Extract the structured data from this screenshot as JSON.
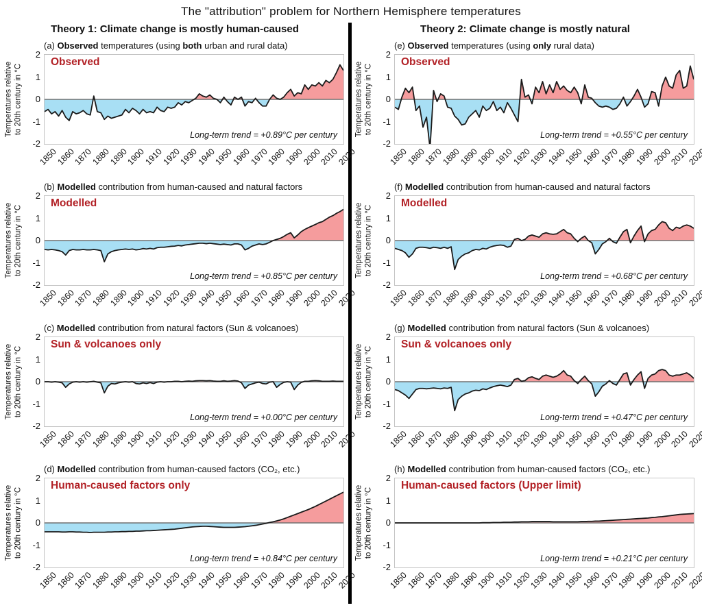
{
  "title": "The \"attribution\" problem for Northern Hemisphere temperatures",
  "columns": [
    {
      "header": "Theory 1: Climate change is mostly human-caused"
    },
    {
      "header": "Theory 2: Climate change is mostly natural"
    }
  ],
  "axis": {
    "x_ticks": [
      "1850",
      "1860",
      "1870",
      "1880",
      "1890",
      "1900",
      "1910",
      "1920",
      "1930",
      "1940",
      "1950",
      "1960",
      "1970",
      "1980",
      "1990",
      "2000",
      "2010",
      "2020"
    ],
    "y_ticks": [
      "2",
      "1",
      "0",
      "-1",
      "-2"
    ],
    "y_label_line1": "Temperatures relative",
    "y_label_line2": "to 20th century in °C",
    "x_min": 1850,
    "x_max": 2020,
    "y_min": -2,
    "y_max": 2,
    "grid": false
  },
  "colors": {
    "positive_fill": "#F59C9D",
    "negative_fill": "#A8DFF4",
    "line": "#1A1A1A",
    "zero_line": "#707070",
    "plot_border": "#C4C4C4",
    "series_label": "#B22126",
    "divider": "#000000"
  },
  "chart_data": [
    {
      "id": "a",
      "type": "area",
      "column": 0,
      "caption_parts": [
        {
          "text": "(a) ",
          "bold": false
        },
        {
          "text": "Observed",
          "bold": true
        },
        {
          "text": " temperatures (using ",
          "bold": false
        },
        {
          "text": "both",
          "bold": true
        },
        {
          "text": " urban and rural data)",
          "bold": false
        }
      ],
      "label": "Observed",
      "trend_text": "Long-term trend = +0.89°C per century",
      "x_start": 1850,
      "x_step": 2,
      "values": [
        -0.55,
        -0.45,
        -0.65,
        -0.55,
        -0.75,
        -0.5,
        -0.8,
        -0.95,
        -0.55,
        -0.65,
        -0.6,
        -0.5,
        -0.65,
        -0.7,
        0.15,
        -0.55,
        -0.6,
        -0.9,
        -0.75,
        -0.85,
        -0.8,
        -0.75,
        -0.7,
        -0.45,
        -0.6,
        -0.4,
        -0.5,
        -0.65,
        -0.45,
        -0.6,
        -0.55,
        -0.6,
        -0.35,
        -0.5,
        -0.55,
        -0.35,
        -0.4,
        -0.35,
        -0.15,
        -0.25,
        -0.1,
        -0.15,
        -0.05,
        0.05,
        0.25,
        0.15,
        0.1,
        0.2,
        0.05,
        0.0,
        -0.15,
        0.1,
        -0.1,
        -0.25,
        0.1,
        0.0,
        0.1,
        -0.3,
        -0.1,
        -0.15,
        0.05,
        -0.15,
        -0.3,
        -0.3,
        0.0,
        0.2,
        0.05,
        0.0,
        0.1,
        0.3,
        0.45,
        0.15,
        0.3,
        0.25,
        0.65,
        0.45,
        0.65,
        0.6,
        0.75,
        0.6,
        0.85,
        0.75,
        0.9,
        1.2,
        1.55,
        1.3
      ]
    },
    {
      "id": "b",
      "type": "area",
      "column": 0,
      "caption_parts": [
        {
          "text": "(b) ",
          "bold": false
        },
        {
          "text": "Modelled",
          "bold": true
        },
        {
          "text": " contribution from human-caused and natural factors",
          "bold": false
        }
      ],
      "label": "Modelled",
      "trend_text": "Long-term trend = +0.85°C per century",
      "x_start": 1850,
      "x_step": 2,
      "values": [
        -0.4,
        -0.42,
        -0.4,
        -0.42,
        -0.45,
        -0.5,
        -0.65,
        -0.45,
        -0.4,
        -0.42,
        -0.42,
        -0.4,
        -0.42,
        -0.42,
        -0.4,
        -0.42,
        -0.45,
        -0.95,
        -0.6,
        -0.5,
        -0.45,
        -0.42,
        -0.4,
        -0.38,
        -0.4,
        -0.38,
        -0.42,
        -0.4,
        -0.36,
        -0.38,
        -0.35,
        -0.38,
        -0.32,
        -0.3,
        -0.3,
        -0.28,
        -0.26,
        -0.25,
        -0.22,
        -0.24,
        -0.2,
        -0.18,
        -0.16,
        -0.14,
        -0.12,
        -0.12,
        -0.14,
        -0.12,
        -0.14,
        -0.16,
        -0.18,
        -0.16,
        -0.18,
        -0.2,
        -0.15,
        -0.15,
        -0.2,
        -0.42,
        -0.35,
        -0.25,
        -0.2,
        -0.15,
        -0.18,
        -0.15,
        -0.08,
        0.0,
        0.05,
        0.1,
        0.18,
        0.28,
        0.35,
        0.12,
        0.25,
        0.4,
        0.5,
        0.58,
        0.65,
        0.72,
        0.8,
        0.85,
        0.95,
        1.05,
        1.12,
        1.22,
        1.3,
        1.4
      ]
    },
    {
      "id": "c",
      "type": "area",
      "column": 0,
      "caption_parts": [
        {
          "text": "(c) ",
          "bold": false
        },
        {
          "text": "Modelled",
          "bold": true
        },
        {
          "text": " contribution from natural factors (Sun & volcanoes)",
          "bold": false
        }
      ],
      "label": "Sun & volcanoes only",
      "trend_text": "Long-term trend = +0.00°C per century",
      "x_start": 1850,
      "x_step": 2,
      "values": [
        0,
        0,
        -0.02,
        0,
        -0.02,
        -0.05,
        -0.25,
        -0.1,
        -0.02,
        0,
        -0.02,
        0,
        -0.02,
        0,
        0.02,
        -0.02,
        -0.05,
        -0.5,
        -0.2,
        -0.08,
        -0.1,
        -0.05,
        -0.02,
        0,
        -0.02,
        0,
        -0.08,
        -0.1,
        -0.05,
        -0.08,
        -0.04,
        -0.08,
        -0.02,
        0,
        -0.02,
        0,
        0,
        0.02,
        0.02,
        0,
        0.02,
        0.03,
        0.02,
        0.04,
        0.05,
        0.05,
        0.04,
        0.05,
        0.03,
        0.02,
        0.02,
        0.04,
        0.02,
        0.03,
        0.05,
        0.03,
        -0.05,
        -0.3,
        -0.15,
        -0.1,
        -0.05,
        -0.02,
        -0.08,
        -0.1,
        -0.02,
        0,
        -0.25,
        -0.12,
        -0.03,
        0,
        -0.02,
        -0.35,
        -0.15,
        -0.03,
        0.02,
        0.02,
        0.04,
        0.05,
        0.04,
        0.02,
        0.02,
        0.02,
        0.03,
        0.02,
        0.02,
        0.02
      ]
    },
    {
      "id": "d",
      "type": "area",
      "column": 0,
      "caption_parts": [
        {
          "text": "(d) ",
          "bold": false
        },
        {
          "text": "Modelled",
          "bold": true
        },
        {
          "text": " contribution from human-caused factors (CO₂, etc.)",
          "bold": false
        }
      ],
      "label": "Human-caused factors only",
      "trend_text": "Long-term trend = +0.84°C per century",
      "x_start": 1850,
      "x_step": 2,
      "values": [
        -0.4,
        -0.4,
        -0.4,
        -0.4,
        -0.4,
        -0.41,
        -0.41,
        -0.4,
        -0.4,
        -0.41,
        -0.41,
        -0.42,
        -0.42,
        -0.43,
        -0.42,
        -0.42,
        -0.42,
        -0.42,
        -0.41,
        -0.41,
        -0.4,
        -0.4,
        -0.39,
        -0.39,
        -0.38,
        -0.38,
        -0.37,
        -0.37,
        -0.36,
        -0.35,
        -0.35,
        -0.34,
        -0.33,
        -0.32,
        -0.31,
        -0.3,
        -0.29,
        -0.28,
        -0.26,
        -0.24,
        -0.22,
        -0.2,
        -0.18,
        -0.17,
        -0.16,
        -0.15,
        -0.15,
        -0.16,
        -0.17,
        -0.18,
        -0.19,
        -0.2,
        -0.2,
        -0.2,
        -0.2,
        -0.19,
        -0.18,
        -0.17,
        -0.15,
        -0.13,
        -0.11,
        -0.08,
        -0.05,
        -0.02,
        0.02,
        0.05,
        0.09,
        0.13,
        0.18,
        0.24,
        0.3,
        0.36,
        0.42,
        0.48,
        0.54,
        0.6,
        0.67,
        0.74,
        0.82,
        0.9,
        0.98,
        1.06,
        1.14,
        1.22,
        1.3,
        1.38
      ]
    },
    {
      "id": "e",
      "type": "area",
      "column": 1,
      "caption_parts": [
        {
          "text": "(e) ",
          "bold": false
        },
        {
          "text": "Observed",
          "bold": true
        },
        {
          "text": " temperatures (using ",
          "bold": false
        },
        {
          "text": "only",
          "bold": true
        },
        {
          "text": " rural data)",
          "bold": false
        }
      ],
      "label": "Observed",
      "trend_text": "Long-term trend = +0.55°C per century",
      "x_start": 1850,
      "x_step": 2,
      "values": [
        -0.35,
        -0.45,
        0.1,
        0.5,
        0.3,
        0.55,
        -0.5,
        -0.3,
        -1.25,
        -0.8,
        -2.2,
        0.4,
        -0.1,
        0.25,
        0.15,
        -0.35,
        -0.4,
        -0.75,
        -0.9,
        -1.15,
        -1.1,
        -0.8,
        -0.65,
        -0.5,
        -0.8,
        -0.3,
        -0.5,
        -0.4,
        -0.1,
        -0.5,
        -0.35,
        -0.6,
        -0.15,
        -0.4,
        -0.7,
        -1.0,
        0.9,
        0.1,
        0.2,
        -0.2,
        0.55,
        0.3,
        0.8,
        0.25,
        0.65,
        0.3,
        0.8,
        0.45,
        0.6,
        0.4,
        0.3,
        0.55,
        0.3,
        -0.2,
        0.65,
        0.1,
        0.05,
        -0.15,
        -0.3,
        -0.35,
        -0.3,
        -0.35,
        -0.45,
        -0.4,
        -0.2,
        0.1,
        -0.3,
        -0.1,
        0.15,
        0.45,
        0.1,
        -0.35,
        -0.2,
        0.35,
        0.3,
        -0.3,
        0.6,
        1.0,
        0.6,
        0.5,
        1.1,
        1.3,
        0.5,
        0.6,
        1.5,
        0.9
      ]
    },
    {
      "id": "f",
      "type": "area",
      "column": 1,
      "caption_parts": [
        {
          "text": "(f) ",
          "bold": false
        },
        {
          "text": "Modelled",
          "bold": true
        },
        {
          "text": " contribution from human-caused and natural factors",
          "bold": false
        }
      ],
      "label": "Modelled",
      "trend_text": "Long-term trend = +0.68°C per century",
      "x_start": 1850,
      "x_step": 2,
      "values": [
        -0.35,
        -0.4,
        -0.45,
        -0.55,
        -0.75,
        -0.6,
        -0.35,
        -0.3,
        -0.3,
        -0.32,
        -0.35,
        -0.3,
        -0.32,
        -0.35,
        -0.3,
        -0.35,
        -0.28,
        -1.3,
        -0.85,
        -0.7,
        -0.6,
        -0.55,
        -0.45,
        -0.4,
        -0.42,
        -0.35,
        -0.38,
        -0.3,
        -0.25,
        -0.22,
        -0.2,
        -0.22,
        -0.3,
        -0.25,
        0.05,
        0.1,
        0.0,
        0.05,
        0.2,
        0.25,
        0.2,
        0.15,
        0.3,
        0.35,
        0.3,
        0.28,
        0.3,
        0.4,
        0.5,
        0.35,
        0.3,
        0.1,
        -0.05,
        0.1,
        0.2,
        0.0,
        -0.1,
        -0.6,
        -0.4,
        -0.15,
        -0.05,
        0.1,
        -0.05,
        -0.12,
        0.15,
        0.4,
        0.5,
        -0.1,
        0.2,
        0.45,
        0.65,
        -0.05,
        0.3,
        0.45,
        0.5,
        0.7,
        0.85,
        0.8,
        0.55,
        0.45,
        0.6,
        0.55,
        0.65,
        0.7,
        0.65,
        0.55
      ]
    },
    {
      "id": "g",
      "type": "area",
      "column": 1,
      "caption_parts": [
        {
          "text": "(g) ",
          "bold": false
        },
        {
          "text": "Modelled",
          "bold": true
        },
        {
          "text": " contribution from natural factors (Sun & volcanoes)",
          "bold": false
        }
      ],
      "label": "Sun & volcanoes only",
      "trend_text": "Long-term trend = +0.47°C per century",
      "x_start": 1850,
      "x_step": 2,
      "values": [
        -0.35,
        -0.4,
        -0.5,
        -0.6,
        -0.75,
        -0.55,
        -0.35,
        -0.3,
        -0.3,
        -0.32,
        -0.3,
        -0.28,
        -0.3,
        -0.32,
        -0.28,
        -0.3,
        -0.25,
        -1.3,
        -0.8,
        -0.65,
        -0.55,
        -0.5,
        -0.42,
        -0.38,
        -0.4,
        -0.32,
        -0.35,
        -0.28,
        -0.22,
        -0.18,
        -0.15,
        -0.18,
        -0.22,
        -0.15,
        0.1,
        0.15,
        0.02,
        0.05,
        0.18,
        0.22,
        0.15,
        0.1,
        0.25,
        0.3,
        0.25,
        0.2,
        0.25,
        0.35,
        0.5,
        0.3,
        0.25,
        0.05,
        -0.08,
        0.1,
        0.25,
        0.05,
        -0.1,
        -0.65,
        -0.45,
        -0.2,
        -0.1,
        0.05,
        -0.08,
        -0.15,
        0.1,
        0.35,
        0.4,
        -0.15,
        0.1,
        0.3,
        0.45,
        -0.3,
        0.15,
        0.3,
        0.35,
        0.5,
        0.55,
        0.5,
        0.3,
        0.25,
        0.3,
        0.3,
        0.35,
        0.4,
        0.3,
        0.15
      ]
    },
    {
      "id": "h",
      "type": "area",
      "column": 1,
      "caption_parts": [
        {
          "text": "(h) ",
          "bold": false
        },
        {
          "text": "Modelled",
          "bold": true
        },
        {
          "text": " contribution from human-caused factors (CO₂, etc.)",
          "bold": false
        }
      ],
      "label": "Human-caused factors (Upper limit)",
      "trend_text": "Long-term trend = +0.21°C per century",
      "x_start": 1850,
      "x_step": 2,
      "values": [
        0,
        0,
        0,
        0,
        0,
        0,
        0,
        0,
        0,
        0,
        0,
        0,
        0,
        0,
        0,
        0,
        0,
        0,
        0,
        0,
        0,
        0,
        0,
        0,
        0,
        0.01,
        0.01,
        0.01,
        0.02,
        0.02,
        0.02,
        0.03,
        0.03,
        0.03,
        0.04,
        0.04,
        0.05,
        0.05,
        0.05,
        0.06,
        0.06,
        0.06,
        0.06,
        0.06,
        0.06,
        0.05,
        0.05,
        0.05,
        0.05,
        0.05,
        0.05,
        0.05,
        0.05,
        0.06,
        0.06,
        0.07,
        0.07,
        0.08,
        0.08,
        0.09,
        0.1,
        0.11,
        0.12,
        0.13,
        0.14,
        0.15,
        0.16,
        0.17,
        0.18,
        0.19,
        0.2,
        0.21,
        0.22,
        0.24,
        0.25,
        0.27,
        0.28,
        0.3,
        0.32,
        0.34,
        0.36,
        0.38,
        0.39,
        0.4,
        0.41,
        0.42
      ]
    }
  ]
}
